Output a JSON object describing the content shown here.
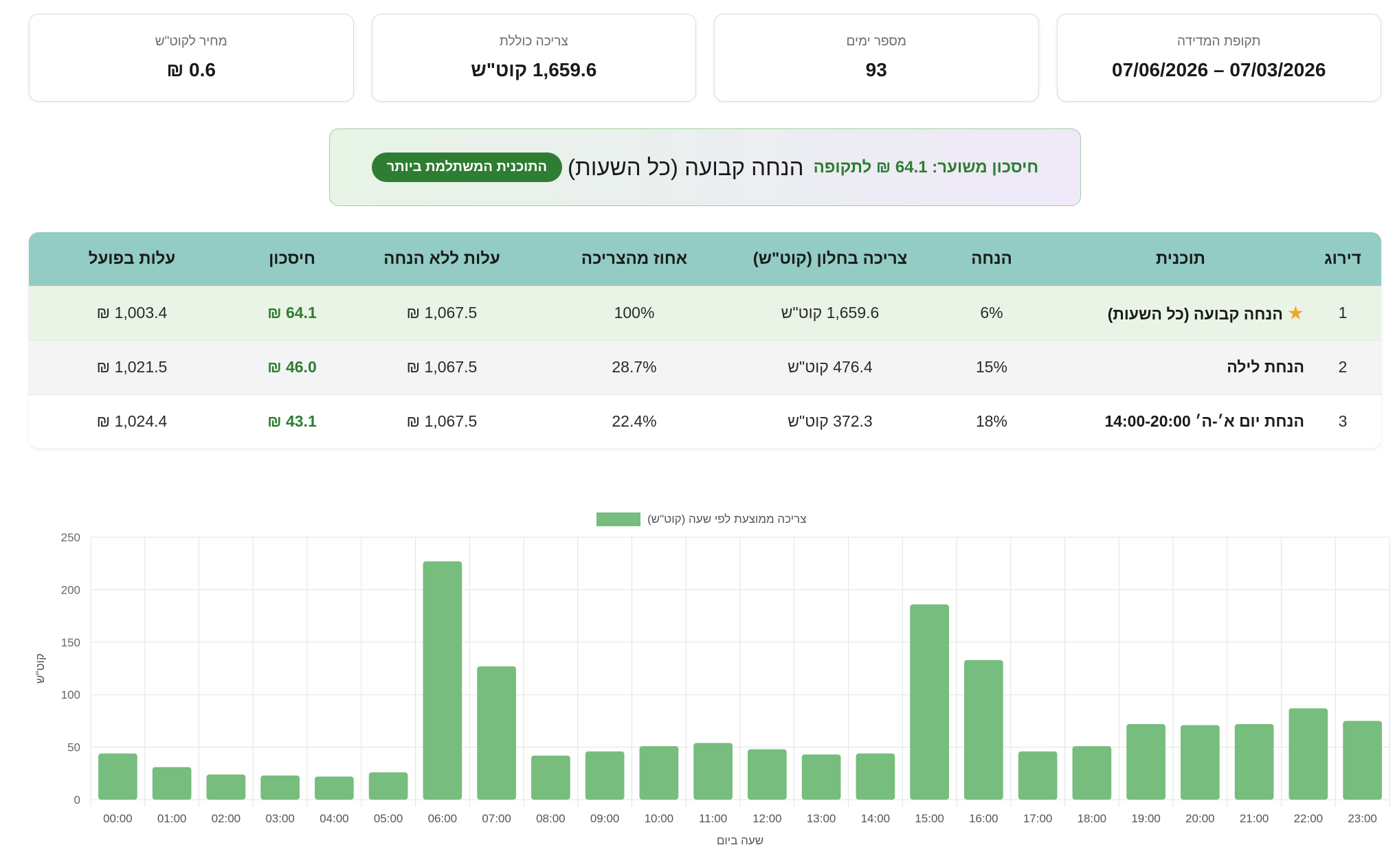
{
  "stats": [
    {
      "label": "תקופת המדידה",
      "value": "07/03/2026 – 07/06/2026"
    },
    {
      "label": "מספר ימים",
      "value": "93"
    },
    {
      "label": "צריכה כוללת",
      "value": "1,659.6 קוט\"ש"
    },
    {
      "label": "מחיר לקוט\"ש",
      "value": "0.6 ₪"
    }
  ],
  "best": {
    "badge": "התוכנית המשתלמת ביותר",
    "plan": "הנחה קבועה (כל השעות)",
    "saving": "חיסכון משוער: 64.1 ₪ לתקופה"
  },
  "table": {
    "headers": [
      "דירוג",
      "תוכנית",
      "הנחה",
      "צריכה בחלון (קוט\"ש)",
      "אחוז מהצריכה",
      "עלות ללא הנחה",
      "חיסכון",
      "עלות בפועל"
    ],
    "rows": [
      {
        "rank": "1",
        "star": "★",
        "plan": "הנחה קבועה (כל השעות)",
        "discount": "6%",
        "window_usage": "1,659.6 קוט\"ש",
        "percent": "100%",
        "cost_no_discount": "1,067.5 ₪",
        "saving": "64.1 ₪",
        "actual_cost": "1,003.4 ₪"
      },
      {
        "rank": "2",
        "star": "",
        "plan": "הנחת לילה",
        "discount": "15%",
        "window_usage": "476.4 קוט\"ש",
        "percent": "28.7%",
        "cost_no_discount": "1,067.5 ₪",
        "saving": "46.0 ₪",
        "actual_cost": "1,021.5 ₪"
      },
      {
        "rank": "3",
        "star": "",
        "plan": "הנחת יום א׳-ה׳ 14:00-20:00",
        "discount": "18%",
        "window_usage": "372.3 קוט\"ש",
        "percent": "22.4%",
        "cost_no_discount": "1,067.5 ₪",
        "saving": "43.1 ₪",
        "actual_cost": "1,024.4 ₪"
      }
    ]
  },
  "colors": {
    "accent_green": "#2e7d32",
    "header_teal": "#92ccc4",
    "bar_green": "#77bd7d",
    "star": "#f2a62c"
  },
  "chart_data": {
    "type": "bar",
    "legend": "צריכה ממוצעת לפי שעה (קוט\"ש)",
    "legend_position": "top-center",
    "xlabel": "שעה ביום",
    "ylabel": "קוט\"ש",
    "ylim": [
      0,
      250
    ],
    "yticks": [
      0,
      50,
      100,
      150,
      200,
      250
    ],
    "grid": true,
    "categories": [
      "00:00",
      "01:00",
      "02:00",
      "03:00",
      "04:00",
      "05:00",
      "06:00",
      "07:00",
      "08:00",
      "09:00",
      "10:00",
      "11:00",
      "12:00",
      "13:00",
      "14:00",
      "15:00",
      "16:00",
      "17:00",
      "18:00",
      "19:00",
      "20:00",
      "21:00",
      "22:00",
      "23:00"
    ],
    "values": [
      44,
      31,
      24,
      23,
      22,
      26,
      227,
      127,
      42,
      46,
      51,
      54,
      48,
      43,
      44,
      186,
      133,
      46,
      51,
      72,
      71,
      72,
      87,
      75
    ]
  }
}
